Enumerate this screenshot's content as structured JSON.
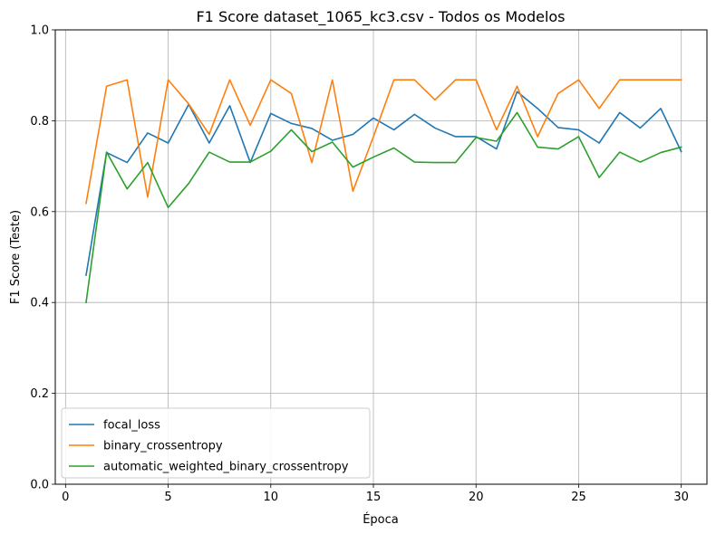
{
  "chart_data": {
    "type": "line",
    "title": "F1 Score dataset_1065_kc3.csv - Todos os Modelos",
    "xlabel": "Época",
    "ylabel": "F1 Score (Teste)",
    "xlim": [
      -0.5,
      31.25
    ],
    "ylim": [
      0,
      1.0
    ],
    "xticks": [
      0,
      5,
      10,
      15,
      20,
      25,
      30
    ],
    "yticks": [
      0.0,
      0.2,
      0.4,
      0.6,
      0.8,
      1.0
    ],
    "xtick_labels": [
      "0",
      "5",
      "10",
      "15",
      "20",
      "25",
      "30"
    ],
    "ytick_labels": [
      "0.0",
      "0.2",
      "0.4",
      "0.6",
      "0.8",
      "1.0"
    ],
    "grid": true,
    "legend_position": "lower-left",
    "x": [
      1,
      2,
      3,
      4,
      5,
      6,
      7,
      8,
      9,
      10,
      11,
      12,
      13,
      14,
      15,
      16,
      17,
      18,
      19,
      20,
      21,
      22,
      23,
      24,
      25,
      26,
      27,
      28,
      29,
      30
    ],
    "series": [
      {
        "name": "focal_loss",
        "color": "#1f77b4",
        "values": [
          0.46,
          0.73,
          0.708,
          0.773,
          0.751,
          0.836,
          0.751,
          0.833,
          0.708,
          0.816,
          0.794,
          0.783,
          0.757,
          0.77,
          0.806,
          0.78,
          0.814,
          0.784,
          0.765,
          0.765,
          0.738,
          0.864,
          0.827,
          0.785,
          0.78,
          0.751,
          0.818,
          0.784,
          0.827,
          0.732
        ]
      },
      {
        "name": "binary_crossentropy",
        "color": "#ff7f0e",
        "values": [
          0.618,
          0.876,
          0.89,
          0.632,
          0.89,
          0.837,
          0.77,
          0.89,
          0.79,
          0.89,
          0.86,
          0.708,
          0.89,
          0.645,
          0.765,
          0.89,
          0.89,
          0.846,
          0.89,
          0.89,
          0.78,
          0.876,
          0.765,
          0.86,
          0.89,
          0.827,
          0.89,
          0.89,
          0.89,
          0.89
        ]
      },
      {
        "name": "automatic_weighted_binary_crossentropy",
        "color": "#2ca02c",
        "values": [
          0.4,
          0.731,
          0.65,
          0.708,
          0.609,
          0.662,
          0.731,
          0.709,
          0.709,
          0.733,
          0.78,
          0.732,
          0.753,
          0.698,
          0.72,
          0.74,
          0.709,
          0.708,
          0.708,
          0.763,
          0.755,
          0.818,
          0.742,
          0.738,
          0.765,
          0.675,
          0.731,
          0.709,
          0.73,
          0.742
        ]
      }
    ]
  }
}
